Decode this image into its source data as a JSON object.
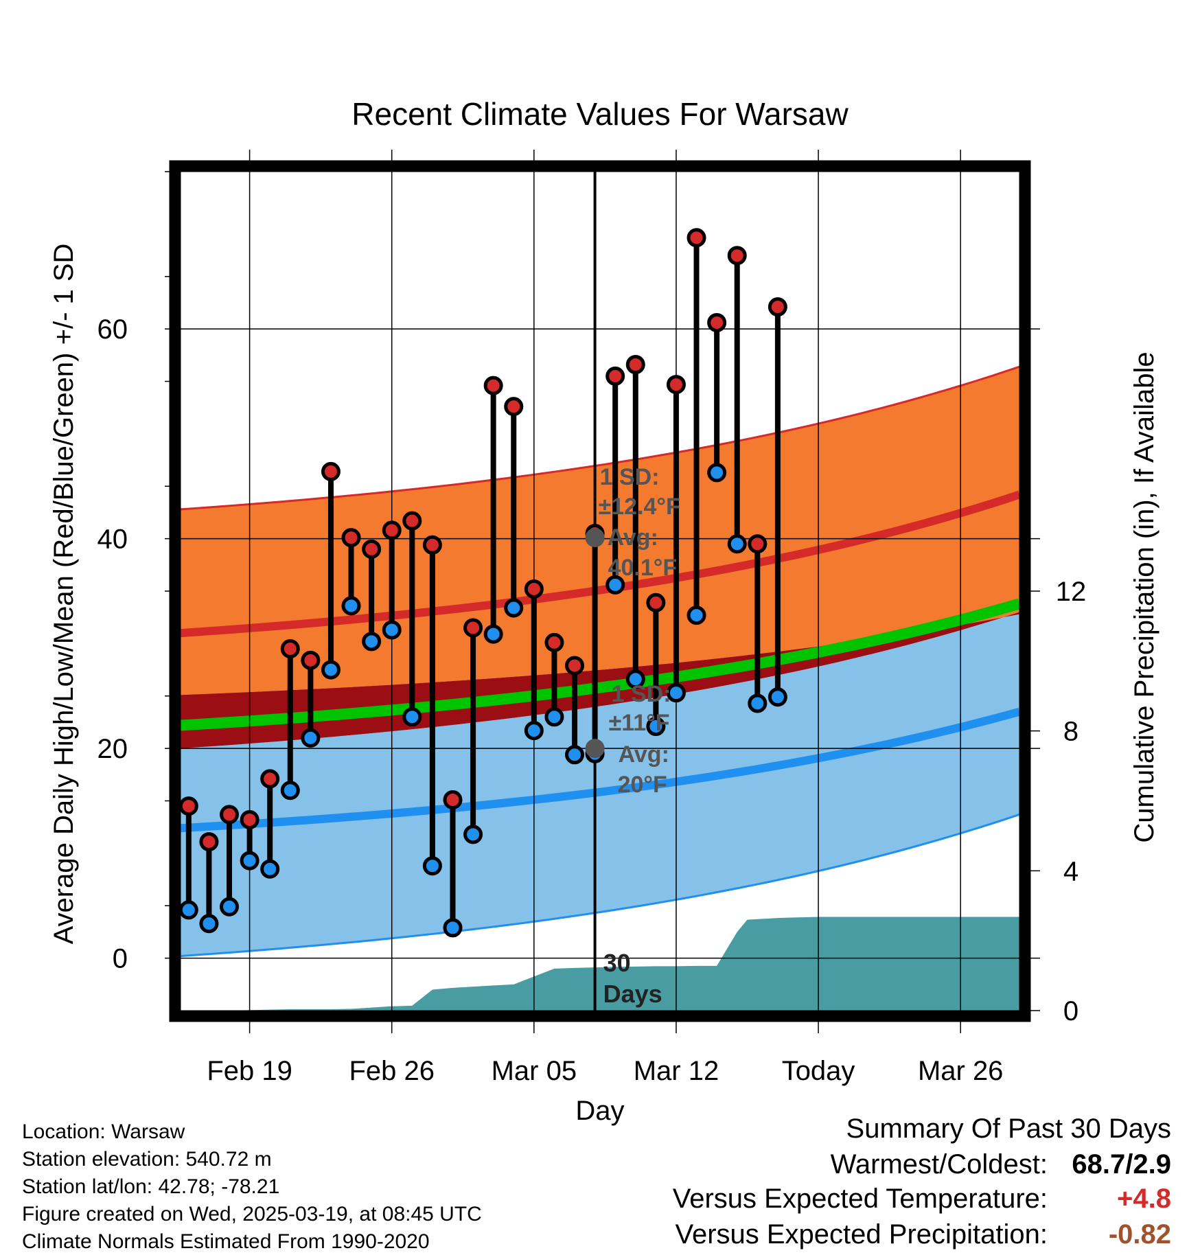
{
  "chart_data": {
    "type": "line",
    "title": "Recent Climate Values For Warsaw",
    "xlabel": "Day",
    "ylabel": "Average Daily High/Low/Mean (Red/Blue/Green) +/- 1 SD",
    "y2label": "Cumulative Precipitation (in), If Available",
    "x_ticks": [
      "Feb 19",
      "Feb 26",
      "Mar 05",
      "Mar 12",
      "Today",
      "Mar 26"
    ],
    "y_ticks": [
      0,
      20,
      40,
      60
    ],
    "y2_ticks": [
      0,
      4,
      8,
      12
    ],
    "ylim": [
      -5,
      75
    ],
    "y2lim": [
      0,
      24
    ],
    "grid": true,
    "today_day": 35,
    "x_range_days": [
      14.6,
      55.9
    ],
    "expected": {
      "high_mean": [
        31.0,
        44.2
      ],
      "high_sd_upper": [
        42.8,
        56.4
      ],
      "high_sd_lower": [
        25.1,
        32.8
      ],
      "low_mean": [
        12.4,
        23.5
      ],
      "low_sd_upper": [
        20.0,
        33.0
      ],
      "low_sd_lower": [
        0.2,
        13.7
      ],
      "mean_mean": [
        22.2,
        33.8
      ],
      "mean_band_upper": [
        25.1,
        32.8
      ],
      "mean_band_lower": [
        20.0,
        33.0
      ]
    },
    "series": [
      {
        "name": "High",
        "x": [
          15,
          16,
          17,
          18,
          19,
          20,
          21,
          22,
          23,
          24,
          25,
          26,
          27,
          28,
          29,
          30,
          31,
          32,
          33,
          34,
          35,
          36,
          37,
          38,
          39,
          40,
          41,
          42,
          43,
          44
        ],
        "values": [
          14.5,
          11.1,
          13.7,
          13.2,
          17.1,
          29.5,
          28.4,
          46.4,
          40.1,
          39.0,
          40.8,
          41.7,
          39.4,
          15.1,
          31.5,
          54.6,
          52.6,
          35.2,
          30.1,
          27.9,
          40.5,
          55.5,
          56.6,
          33.9,
          54.7,
          68.7,
          60.6,
          67.0,
          39.5,
          62.1
        ]
      },
      {
        "name": "Low",
        "x": [
          15,
          16,
          17,
          18,
          19,
          20,
          21,
          22,
          23,
          24,
          25,
          26,
          27,
          28,
          29,
          30,
          31,
          32,
          33,
          34,
          35,
          36,
          37,
          38,
          39,
          40,
          41,
          42,
          43,
          44
        ],
        "values": [
          4.6,
          3.3,
          4.9,
          9.3,
          8.5,
          16.0,
          21.0,
          27.5,
          33.6,
          30.2,
          31.3,
          23.0,
          8.8,
          2.9,
          11.8,
          30.9,
          33.4,
          21.7,
          23.0,
          19.4,
          19.5,
          35.6,
          26.6,
          22.1,
          25.3,
          32.7,
          46.3,
          39.5,
          24.3,
          24.9
        ]
      }
    ],
    "precip": {
      "name": "Precipitation",
      "x": [
        14.6,
        17.0,
        20.0,
        22.0,
        23.0,
        24.9,
        26.0,
        27.0,
        28.0,
        30.0,
        31.0,
        33.0,
        34.0,
        36.0,
        38.0,
        39.0,
        40.0,
        41.0,
        42.0,
        42.5,
        44.0,
        46.0,
        48.0,
        50.0,
        55.9
      ],
      "values": [
        0.0,
        0.0,
        0.04,
        0.04,
        0.05,
        0.12,
        0.14,
        0.6,
        0.65,
        0.72,
        0.75,
        1.2,
        1.22,
        1.25,
        1.27,
        1.27,
        1.28,
        1.28,
        2.25,
        2.6,
        2.65,
        2.68,
        2.68,
        2.68,
        2.68
      ]
    },
    "annotations": {
      "high_sd": "1 SD:",
      "high_sd_val": "±12.4°F",
      "high_avg": "Avg:",
      "high_avg_val": "40.1°F",
      "low_sd": "1 SD:",
      "low_sd_val": "±11°F",
      "low_avg": "Avg:",
      "low_avg_val": "20°F",
      "days1": "30",
      "days2": "Days"
    },
    "colors": {
      "high_band": "#f47a2f",
      "high_line": "#d42a2a",
      "low_band": "#85c1e8",
      "low_line": "#1f8ff0",
      "mean_band": "#9a0e14",
      "mean_line": "#00c400",
      "precip": "#4a9ca3",
      "high_marker": "#d42a2a",
      "low_marker": "#1f8ff0"
    }
  },
  "footer": {
    "location": "Location: Warsaw",
    "elevation": "Station elevation: 540.72 m",
    "latlon": "Station lat/lon: 42.78; -78.21",
    "created": "Figure created on Wed, 2025-03-19, at 08:45 UTC",
    "normals": "Climate Normals Estimated From 1990-2020"
  },
  "summary": {
    "title": "Summary Of Past 30 Days",
    "warm_cold_label": "Warmest/Coldest:",
    "warm_cold_value": "68.7/2.9",
    "temp_label": "Versus Expected Temperature:",
    "temp_value": "+4.8",
    "temp_color": "#d42a2a",
    "precip_label": "Versus Expected Precipitation:",
    "precip_value": "-0.82",
    "precip_color": "#a0522d"
  }
}
